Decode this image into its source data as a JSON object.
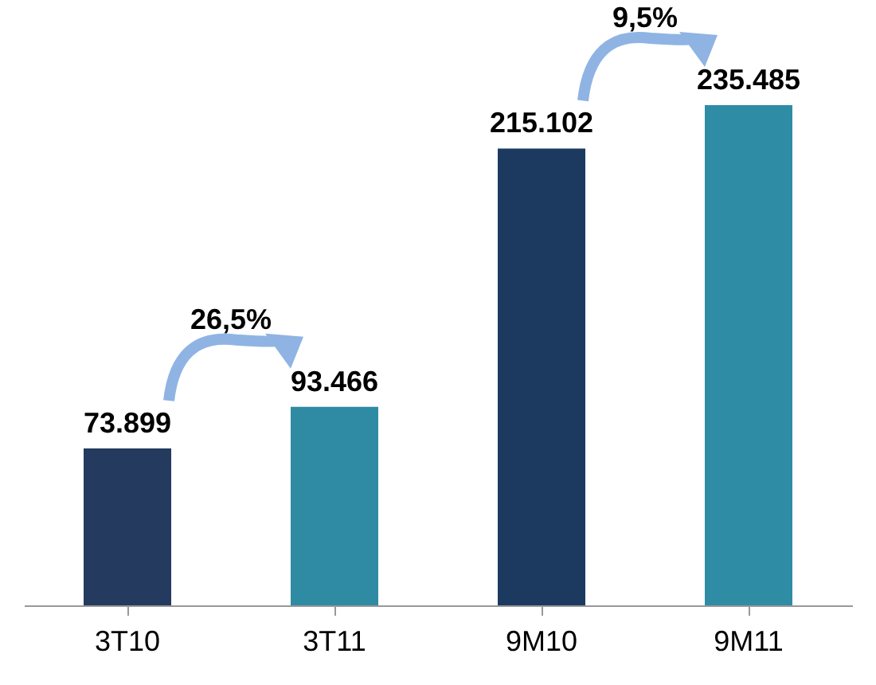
{
  "chart_data": {
    "type": "bar",
    "categories": [
      "3T10",
      "3T11",
      "9M10",
      "9M11"
    ],
    "values": [
      73899,
      93466,
      215102,
      235485
    ],
    "value_labels": [
      "73.899",
      "93.466",
      "215.102",
      "235.485"
    ],
    "colors": [
      "#243a5e",
      "#2e8ba3",
      "#1c3a60",
      "#2f8ca5"
    ],
    "annotations": [
      "26,5%",
      "9,5%"
    ],
    "grid": false
  }
}
